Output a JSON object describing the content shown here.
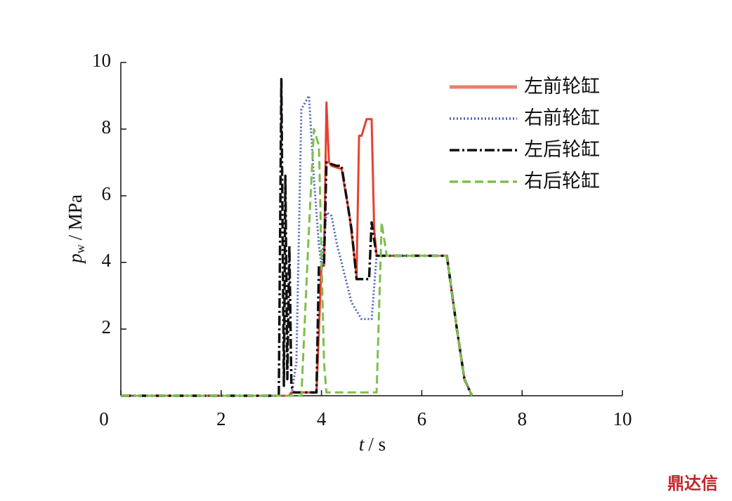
{
  "chart_data": {
    "type": "line",
    "x_label": {
      "symbol": "t",
      "unit": "/ s"
    },
    "y_label": {
      "symbol": "p",
      "subscript": "w",
      "unit": "/ MPa"
    },
    "xlim": [
      0,
      10
    ],
    "ylim": [
      0,
      10
    ],
    "xticks": [
      0,
      2,
      4,
      6,
      8,
      10
    ],
    "yticks": [
      2,
      4,
      6,
      8,
      10
    ],
    "legend": "upper right",
    "series": [
      {
        "name": "左前轮缸",
        "color": "#e8402f",
        "legend_color": "#e8826a",
        "dash": "",
        "x": [
          0,
          3.35,
          3.4,
          3.9,
          4.0,
          4.05,
          4.1,
          4.15,
          4.2,
          4.4,
          4.55,
          4.7,
          4.75,
          4.8,
          4.9,
          5.0,
          5.05,
          5.1,
          6.5,
          6.7,
          6.85,
          7.0
        ],
        "values": [
          0,
          0,
          0.1,
          0.1,
          3.9,
          3.9,
          8.8,
          7.0,
          6.9,
          6.8,
          5.5,
          3.6,
          7.8,
          7.8,
          8.3,
          8.3,
          5.0,
          4.2,
          4.2,
          2.0,
          0.5,
          0
        ]
      },
      {
        "name": "右前轮缸",
        "color": "#4a5fc0",
        "legend_color": "#4a5fc0",
        "dash": "2,3",
        "x": [
          0,
          3.4,
          3.5,
          3.6,
          3.75,
          3.85,
          3.95,
          4.0,
          4.1,
          4.2,
          4.3,
          4.4,
          4.6,
          4.8,
          5.0,
          5.1,
          6.5,
          6.7,
          6.85,
          7.0
        ],
        "values": [
          0,
          0,
          1.0,
          8.6,
          9.0,
          6.5,
          4.5,
          3.9,
          5.5,
          5.4,
          4.6,
          4.0,
          2.8,
          2.3,
          2.3,
          4.2,
          4.2,
          2.0,
          0.5,
          0
        ]
      },
      {
        "name": "左后轮缸",
        "color": "#111111",
        "legend_color": "#111111",
        "dash": "14,4,3,4",
        "x": [
          0,
          3.15,
          3.2,
          3.25,
          3.28,
          3.32,
          3.36,
          3.4,
          3.45,
          3.9,
          3.95,
          4.05,
          4.1,
          4.3,
          4.4,
          4.6,
          4.7,
          4.95,
          5.0,
          5.1,
          6.5,
          6.7,
          6.85,
          7.0
        ],
        "values": [
          0,
          0,
          9.5,
          0.3,
          6.6,
          0.5,
          4.5,
          0.3,
          0.1,
          0.1,
          3.9,
          3.9,
          7.0,
          6.9,
          6.9,
          5.0,
          3.5,
          3.5,
          5.2,
          4.2,
          4.2,
          2.0,
          0.5,
          0
        ]
      },
      {
        "name": "右后轮缸",
        "color": "#7cc04a",
        "legend_color": "#7cc04a",
        "dash": "12,6",
        "x": [
          0,
          3.6,
          3.75,
          3.85,
          3.95,
          4.05,
          4.1,
          5.1,
          5.2,
          5.3,
          6.5,
          6.7,
          6.85,
          7.0
        ],
        "values": [
          0,
          0,
          5.0,
          8.0,
          7.5,
          1.0,
          0.1,
          0.1,
          5.2,
          4.2,
          4.2,
          2.0,
          0.5,
          0
        ]
      }
    ]
  },
  "watermark": "鼎达信"
}
